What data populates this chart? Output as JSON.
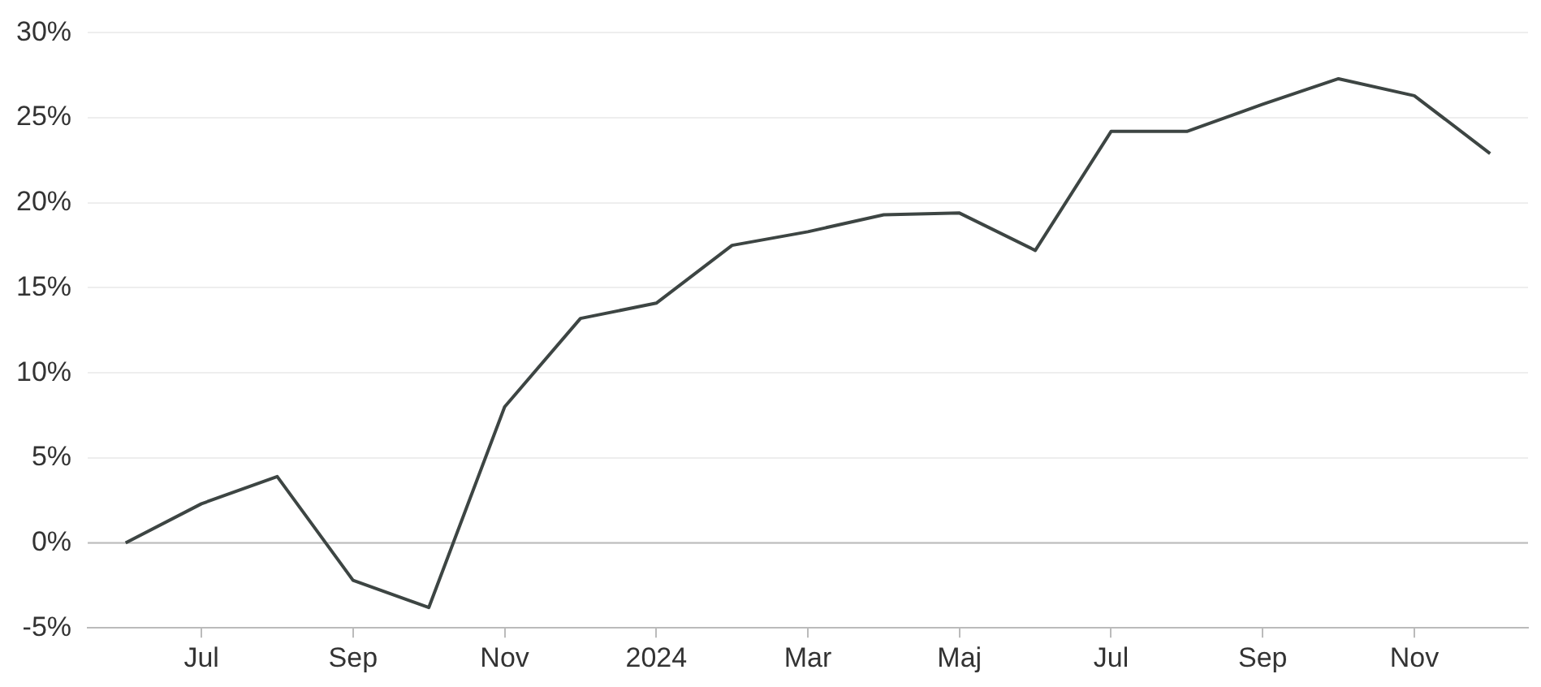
{
  "chart_data": {
    "type": "line",
    "categories": [
      null,
      "Jul",
      null,
      "Sep",
      null,
      "Nov",
      null,
      "2024",
      null,
      "Mar",
      null,
      "Maj",
      null,
      "Jul",
      null,
      "Sep",
      null,
      "Nov",
      null
    ],
    "series": [
      {
        "color": "#3d4543",
        "values": [
          0,
          2.3,
          3.9,
          -2.2,
          -3.8,
          8.0,
          13.2,
          14.1,
          17.5,
          18.3,
          19.3,
          19.4,
          17.2,
          24.2,
          24.2,
          25.8,
          27.3,
          26.3,
          22.9
        ]
      }
    ],
    "ylim": [
      -5,
      30
    ],
    "yticks": [
      {
        "value": -5,
        "label": "-5%"
      },
      {
        "value": 0,
        "label": "0%"
      },
      {
        "value": 5,
        "label": "5%"
      },
      {
        "value": 10,
        "label": "10%"
      },
      {
        "value": 15,
        "label": "15%"
      },
      {
        "value": 20,
        "label": "20%"
      },
      {
        "value": 25,
        "label": "25%"
      },
      {
        "value": 30,
        "label": "30%"
      }
    ],
    "ref_lines": [
      {
        "axis": "y",
        "value": 0,
        "color": "#bbbbbb"
      }
    ],
    "grid": "y",
    "legend": false,
    "marker": "none",
    "line_style": "solid"
  }
}
